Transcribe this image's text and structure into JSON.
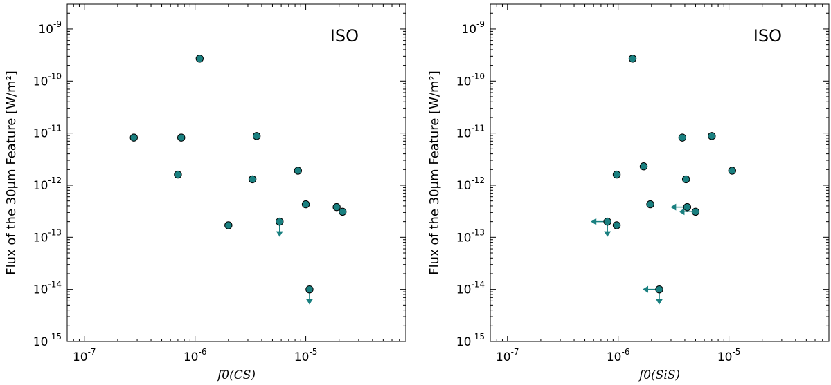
{
  "chart_data": [
    {
      "type": "scatter",
      "title": "ISO",
      "xlabel": "f0(CS)",
      "ylabel": "Flux of the 30μm Feature [W/m²]",
      "xscale": "log",
      "yscale": "log",
      "xlim": [
        7e-08,
        8e-05
      ],
      "ylim": [
        1e-15,
        3e-09
      ],
      "xticks": [
        1e-07,
        1e-06,
        1e-05
      ],
      "xtick_labels": [
        [
          "10",
          "-7"
        ],
        [
          "10",
          "-6"
        ],
        [
          "10",
          "-5"
        ]
      ],
      "yticks": [
        1e-15,
        1e-14,
        1e-13,
        1e-12,
        1e-11,
        1e-10,
        1e-09
      ],
      "ytick_labels": [
        [
          "10",
          "-15"
        ],
        [
          "10",
          "-14"
        ],
        [
          "10",
          "-13"
        ],
        [
          "10",
          "-12"
        ],
        [
          "10",
          "-11"
        ],
        [
          "10",
          "-10"
        ],
        [
          "10",
          "-9"
        ]
      ],
      "marker_color": "#1a8080",
      "points": [
        {
          "x": 1.1e-06,
          "y": 2.7e-10
        },
        {
          "x": 2.8e-07,
          "y": 8.2e-12
        },
        {
          "x": 7.5e-07,
          "y": 8.2e-12
        },
        {
          "x": 3.6e-06,
          "y": 8.8e-12
        },
        {
          "x": 7e-07,
          "y": 1.6e-12
        },
        {
          "x": 3.3e-06,
          "y": 1.3e-12
        },
        {
          "x": 8.5e-06,
          "y": 1.9e-12
        },
        {
          "x": 1e-05,
          "y": 4.3e-13
        },
        {
          "x": 1.9e-05,
          "y": 3.8e-13
        },
        {
          "x": 2.15e-05,
          "y": 3.1e-13
        },
        {
          "x": 2e-06,
          "y": 1.7e-13
        },
        {
          "x": 5.8e-06,
          "y": 2e-13,
          "upper_limit_y": true
        },
        {
          "x": 1.08e-05,
          "y": 1e-14,
          "upper_limit_y": true
        }
      ]
    },
    {
      "type": "scatter",
      "title": "ISO",
      "xlabel": "f0(SiS)",
      "ylabel": "Flux of the 30μm Feature [W/m²]",
      "xscale": "log",
      "yscale": "log",
      "xlim": [
        7e-08,
        8e-05
      ],
      "ylim": [
        1e-15,
        3e-09
      ],
      "xticks": [
        1e-07,
        1e-06,
        1e-05
      ],
      "xtick_labels": [
        [
          "10",
          "-7"
        ],
        [
          "10",
          "-6"
        ],
        [
          "10",
          "-5"
        ]
      ],
      "yticks": [
        1e-15,
        1e-14,
        1e-13,
        1e-12,
        1e-11,
        1e-10,
        1e-09
      ],
      "ytick_labels": [
        [
          "10",
          "-15"
        ],
        [
          "10",
          "-14"
        ],
        [
          "10",
          "-13"
        ],
        [
          "10",
          "-12"
        ],
        [
          "10",
          "-11"
        ],
        [
          "10",
          "-10"
        ],
        [
          "10",
          "-9"
        ]
      ],
      "marker_color": "#1a8080",
      "points": [
        {
          "x": 1.35e-06,
          "y": 2.7e-10
        },
        {
          "x": 3.8e-06,
          "y": 8.2e-12
        },
        {
          "x": 7e-06,
          "y": 8.8e-12
        },
        {
          "x": 1.7e-06,
          "y": 2.3e-12
        },
        {
          "x": 9.7e-07,
          "y": 1.6e-12
        },
        {
          "x": 4.1e-06,
          "y": 1.3e-12
        },
        {
          "x": 1.07e-05,
          "y": 1.9e-12
        },
        {
          "x": 1.95e-06,
          "y": 4.3e-13
        },
        {
          "x": 4.2e-06,
          "y": 3.8e-13,
          "upper_limit_x": true
        },
        {
          "x": 5e-06,
          "y": 3.1e-13,
          "upper_limit_x": true
        },
        {
          "x": 9.7e-07,
          "y": 1.7e-13
        },
        {
          "x": 8e-07,
          "y": 2e-13,
          "upper_limit_x": true,
          "upper_limit_y": true
        },
        {
          "x": 2.35e-06,
          "y": 1e-14,
          "upper_limit_x": true,
          "upper_limit_y": true
        }
      ]
    }
  ]
}
